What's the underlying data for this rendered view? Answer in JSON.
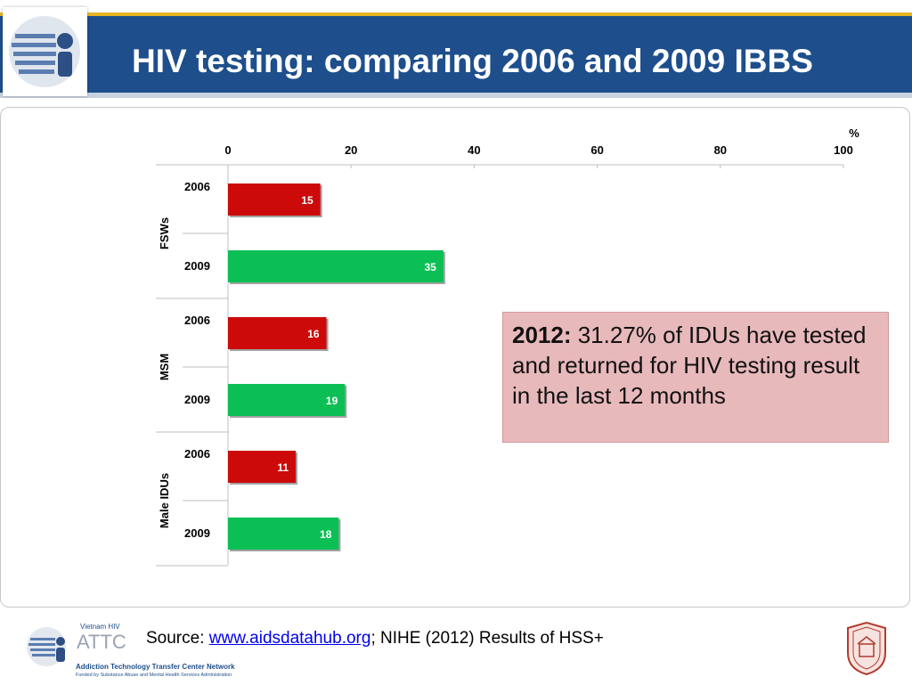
{
  "slide": {
    "title": "HIV testing: comparing 2006 and 2009 IBBS"
  },
  "callout": {
    "bold": "2012:",
    "text": " 31.27% of IDUs have tested and returned for HIV testing result in the last 12 months"
  },
  "footer": {
    "source_prefix": "Source: ",
    "source_link": "www.aidsdatahub.org",
    "source_suffix": "; NIHE (2012) Results of HSS+",
    "logo_small": "Vietnam HIV",
    "logo_name": "ATTC",
    "logo_full": "Addiction Technology Transfer Center Network",
    "logo_funded": "Funded by Substance Abuse and Mental Health Services Administration"
  },
  "chart_data": {
    "type": "bar",
    "orientation": "horizontal",
    "unit_label": "%",
    "xlim": [
      0,
      100
    ],
    "x_ticks": [
      "0",
      "20",
      "40",
      "60",
      "80",
      "100"
    ],
    "groups": [
      {
        "name": "FSWs",
        "bars": [
          {
            "year": "2006",
            "value": 15
          },
          {
            "year": "2009",
            "value": 35
          }
        ]
      },
      {
        "name": "MSM",
        "bars": [
          {
            "year": "2006",
            "value": 16
          },
          {
            "year": "2009",
            "value": 19
          }
        ]
      },
      {
        "name": "Male IDUs",
        "bars": [
          {
            "year": "2006",
            "value": 11
          },
          {
            "year": "2009",
            "value": 18
          }
        ]
      }
    ],
    "colors": {
      "2006": "#cc0a0a",
      "2009": "#0bbf55"
    }
  }
}
